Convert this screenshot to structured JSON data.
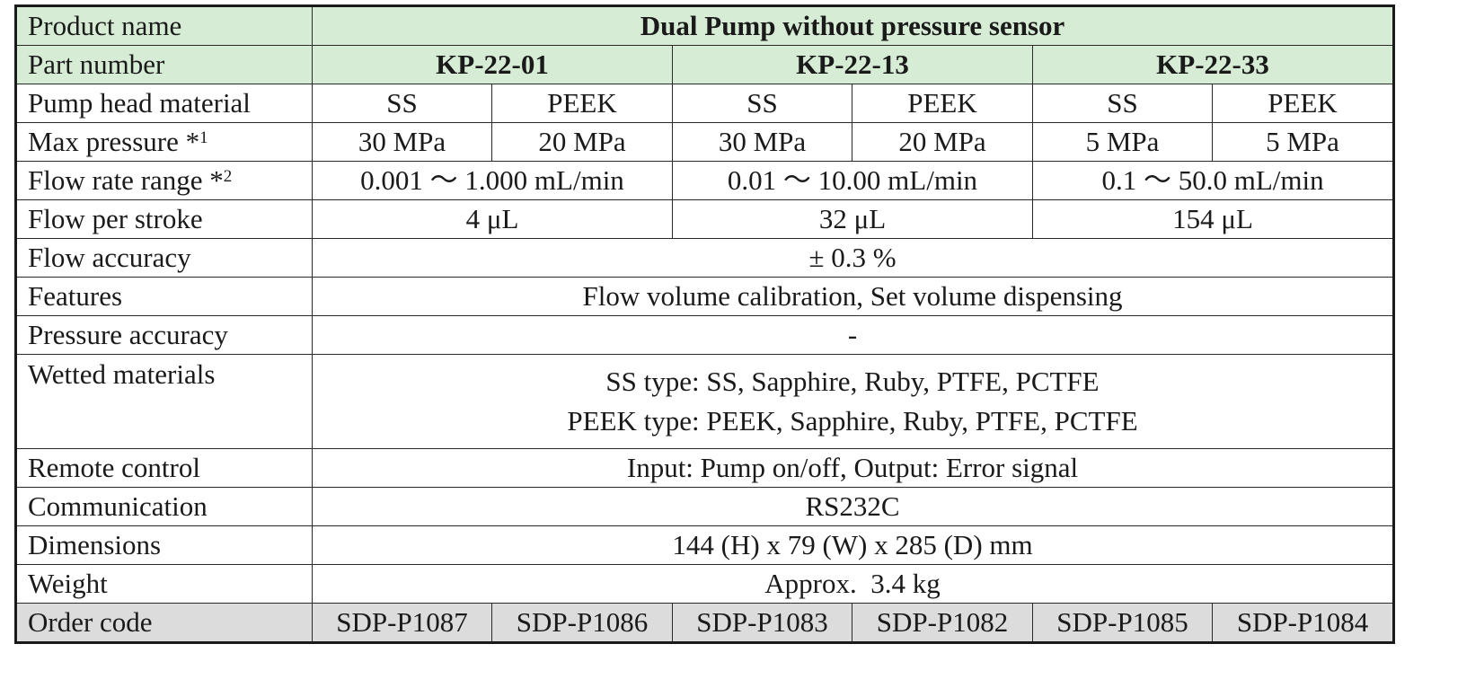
{
  "table": {
    "product_name": {
      "label": "Product name",
      "value": "Dual Pump without pressure sensor"
    },
    "part_number": {
      "label": "Part number",
      "values": [
        "KP-22-01",
        "KP-22-13",
        "KP-22-33"
      ]
    },
    "pump_head_material": {
      "label": "Pump head material",
      "values": [
        "SS",
        "PEEK",
        "SS",
        "PEEK",
        "SS",
        "PEEK"
      ]
    },
    "max_pressure": {
      "label": "Max pressure *",
      "note": "1",
      "values": [
        "30 MPa",
        "20 MPa",
        "30 MPa",
        "20 MPa",
        "5 MPa",
        "5 MPa"
      ]
    },
    "flow_rate_range": {
      "label": "Flow rate range *",
      "note": "2",
      "values": [
        "0.001 〜 1.000 mL/min",
        "0.01 〜 10.00 mL/min",
        "0.1 〜 50.0 mL/min"
      ]
    },
    "flow_per_stroke": {
      "label": "Flow per stroke",
      "values": [
        "4 μL",
        "32 μL",
        "154 μL"
      ]
    },
    "flow_accuracy": {
      "label": "Flow accuracy",
      "value": "± 0.3 %"
    },
    "features": {
      "label": "Features",
      "value": "Flow volume calibration, Set volume dispensing"
    },
    "pressure_accuracy": {
      "label": "Pressure accuracy",
      "value": "-"
    },
    "wetted_materials": {
      "label": "Wetted materials",
      "lines": [
        "SS type: SS, Sapphire, Ruby, PTFE, PCTFE",
        "PEEK type: PEEK, Sapphire, Ruby, PTFE, PCTFE"
      ]
    },
    "remote_control": {
      "label": "Remote control",
      "value": "Input: Pump on/off, Output: Error signal"
    },
    "communication": {
      "label": "Communication",
      "value": "RS232C"
    },
    "dimensions": {
      "label": "Dimensions",
      "value": "144 (H) x 79 (W) x 285 (D) mm"
    },
    "weight": {
      "label": "Weight",
      "value": "Approx.  3.4 kg"
    },
    "order_code": {
      "label": "Order code",
      "values": [
        "SDP-P1087",
        "SDP-P1086",
        "SDP-P1083",
        "SDP-P1082",
        "SDP-P1085",
        "SDP-P1084"
      ]
    }
  },
  "colors": {
    "header_green": "#d6ecd5",
    "footer_grey": "#dcdcdc",
    "border": "#1a1a1a"
  }
}
